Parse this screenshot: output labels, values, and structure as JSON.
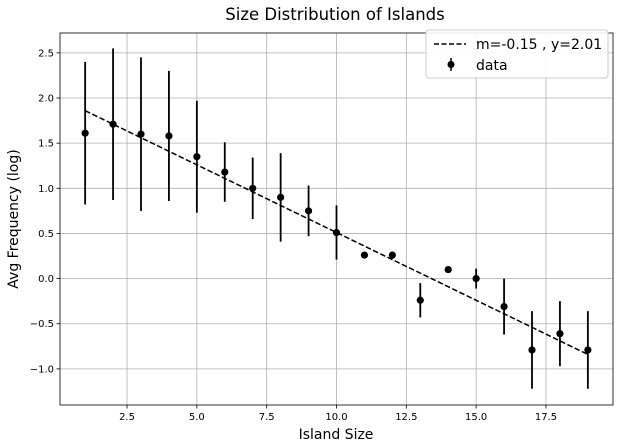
{
  "chart_data": {
    "type": "scatter",
    "title": "Size Distribution of Islands",
    "xlabel": "Island Size",
    "ylabel": "Avg Frequency (log)",
    "xlim": [
      0.1,
      19.9
    ],
    "ylim": [
      -1.4,
      2.72
    ],
    "xticks": [
      2.5,
      5.0,
      7.5,
      10.0,
      12.5,
      15.0,
      17.5
    ],
    "xtick_labels": [
      "2.5",
      "5.0",
      "7.5",
      "10.0",
      "12.5",
      "15.0",
      "17.5"
    ],
    "yticks": [
      -1.0,
      -0.5,
      0.0,
      0.5,
      1.0,
      1.5,
      2.0,
      2.5
    ],
    "ytick_labels": [
      "−1.0",
      "−0.5",
      "0.0",
      "0.5",
      "1.0",
      "1.5",
      "2.0",
      "2.5"
    ],
    "grid": true,
    "legend_position": "top-right",
    "series": [
      {
        "name": "data",
        "kind": "errorbar",
        "color": "#000000",
        "x": [
          1,
          2,
          3,
          4,
          5,
          6,
          7,
          8,
          9,
          10,
          11,
          12,
          13,
          14,
          15,
          16,
          17,
          18,
          19
        ],
        "y": [
          1.61,
          1.71,
          1.6,
          1.58,
          1.35,
          1.18,
          1.0,
          0.9,
          0.75,
          0.51,
          0.26,
          0.26,
          -0.24,
          0.1,
          0.0,
          -0.31,
          -0.79,
          -0.61,
          -0.79
        ],
        "yerr": [
          0.79,
          0.84,
          0.85,
          0.72,
          0.62,
          0.33,
          0.34,
          0.49,
          0.28,
          0.3,
          0.0,
          0.04,
          0.19,
          0.0,
          0.11,
          0.31,
          0.43,
          0.36,
          0.43
        ]
      },
      {
        "name": "m=-0.15 , y=2.01",
        "kind": "line",
        "style": "dashed",
        "color": "#000000",
        "x": [
          1,
          19
        ],
        "y": [
          1.86,
          -0.84
        ]
      }
    ]
  }
}
